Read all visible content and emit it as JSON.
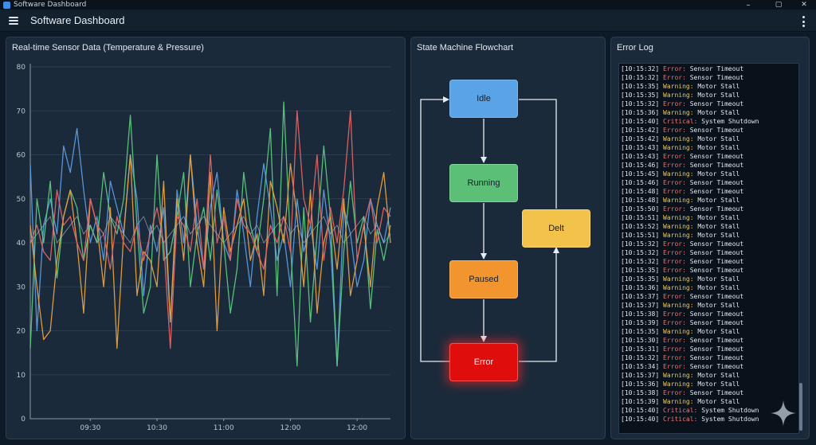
{
  "window": {
    "title": "Software Dashboard",
    "minimize": "–",
    "maximize": "▢",
    "close": "✕"
  },
  "appbar": {
    "title": "Software Dashboard"
  },
  "chart_panel": {
    "title": "Real-time Sensor Data (Temperature & Pressure)"
  },
  "chart_data": {
    "type": "line",
    "title": "Real-time Sensor Data (Temperature & Pressure)",
    "xlabel": "",
    "ylabel": "",
    "ylim": [
      0,
      80
    ],
    "yticks": [
      0,
      10,
      20,
      30,
      40,
      50,
      60,
      70,
      80
    ],
    "xlim": [
      0,
      54
    ],
    "xticks": [
      {
        "x": 9,
        "label": "09:30"
      },
      {
        "x": 19,
        "label": "10:30"
      },
      {
        "x": 29,
        "label": "11:00"
      },
      {
        "x": 39,
        "label": "12:00"
      },
      {
        "x": 49,
        "label": "12:00"
      }
    ],
    "grid": true,
    "series": [
      {
        "color": "#5b9be0",
        "values": [
          58,
          20,
          44,
          50,
          42,
          62,
          56,
          66,
          52,
          40,
          46,
          36,
          54,
          48,
          42,
          60,
          50,
          28,
          44,
          38,
          48,
          22,
          52,
          40,
          60,
          44,
          34,
          48,
          56,
          40,
          36,
          52,
          42,
          30,
          46,
          58,
          48,
          36,
          42,
          30,
          50,
          38,
          44,
          34,
          52,
          40,
          12,
          48,
          42,
          30,
          36,
          50,
          44,
          40,
          48
        ]
      },
      {
        "color": "#5cc77e",
        "values": [
          16,
          50,
          40,
          54,
          32,
          46,
          52,
          48,
          36,
          44,
          40,
          56,
          46,
          42,
          50,
          69,
          44,
          24,
          30,
          60,
          36,
          38,
          46,
          56,
          30,
          42,
          48,
          36,
          52,
          40,
          24,
          34,
          56,
          44,
          38,
          50,
          66,
          28,
          72,
          40,
          12,
          48,
          22,
          42,
          62,
          46,
          12,
          38,
          54,
          40,
          46,
          25,
          43,
          36,
          44
        ]
      },
      {
        "color": "#e8a040",
        "values": [
          44,
          30,
          18,
          20,
          36,
          46,
          52,
          40,
          24,
          50,
          44,
          30,
          48,
          16,
          42,
          60,
          28,
          38,
          36,
          30,
          54,
          22,
          50,
          36,
          60,
          40,
          30,
          56,
          20,
          48,
          38,
          44,
          50,
          36,
          42,
          28,
          54,
          48,
          40,
          58,
          46,
          30,
          52,
          24,
          40,
          46,
          34,
          50,
          28,
          36,
          44,
          30,
          48,
          56,
          40
        ]
      },
      {
        "color": "#e26464",
        "values": [
          40,
          44,
          38,
          36,
          52,
          44,
          46,
          40,
          36,
          50,
          44,
          42,
          34,
          46,
          40,
          38,
          44,
          36,
          42,
          48,
          40,
          16,
          46,
          44,
          38,
          50,
          34,
          60,
          40,
          46,
          36,
          50,
          44,
          42,
          38,
          34,
          44,
          40,
          46,
          38,
          70,
          50,
          44,
          60,
          36,
          48,
          40,
          52,
          70,
          36,
          44,
          50,
          40,
          48,
          46
        ]
      },
      {
        "color": "#aab3bd",
        "values": [
          40,
          42,
          44,
          46,
          40,
          42,
          44,
          46,
          42,
          44,
          40,
          42,
          46,
          44,
          42,
          40,
          44,
          46,
          42,
          44,
          40,
          42,
          44,
          46,
          42,
          44,
          46,
          44,
          42,
          40,
          42,
          44,
          46,
          42,
          44,
          40,
          42,
          44,
          46,
          42,
          44,
          40,
          42,
          44,
          46,
          42,
          44,
          40,
          42,
          44,
          46,
          42,
          44,
          40,
          42
        ]
      }
    ]
  },
  "flow_panel": {
    "title": "State Machine Flowchart",
    "nodes": {
      "idle": "Idle",
      "running": "Running",
      "paused": "Paused",
      "error": "Error",
      "delt": "Delt"
    }
  },
  "log_panel": {
    "title": "Error Log",
    "entries": [
      {
        "ts": "[10:15:32]",
        "level": "Error:",
        "kind": "error",
        "msg": "Sensor Timeout"
      },
      {
        "ts": "[10:15:32]",
        "level": "Error:",
        "kind": "error",
        "msg": "Sensor Timeout"
      },
      {
        "ts": "[10:15:35]",
        "level": "Warning:",
        "kind": "warning",
        "msg": "Motor Stall"
      },
      {
        "ts": "[10:15:35]",
        "level": "Warning:",
        "kind": "warning",
        "msg": "Motor Stall"
      },
      {
        "ts": "[10:15:32]",
        "level": "Error:",
        "kind": "error",
        "msg": "Sensor Timeout"
      },
      {
        "ts": "[10:15:36]",
        "level": "Warning:",
        "kind": "warning",
        "msg": "Motor Stall"
      },
      {
        "ts": "[10:15:40]",
        "level": "Critical:",
        "kind": "critical",
        "msg": "System Shutdown"
      },
      {
        "ts": "[10:15:42]",
        "level": "Error:",
        "kind": "error",
        "msg": "Sensor Timeout"
      },
      {
        "ts": "[10:15:42]",
        "level": "Warning:",
        "kind": "warning",
        "msg": "Motor Stall"
      },
      {
        "ts": "[10:15:43]",
        "level": "Warning:",
        "kind": "warning",
        "msg": "Motor Stall"
      },
      {
        "ts": "[10:15:43]",
        "level": "Error:",
        "kind": "error",
        "msg": "Sensor Timeout"
      },
      {
        "ts": "[10:15:46]",
        "level": "Error:",
        "kind": "error",
        "msg": "Sensor Timeout"
      },
      {
        "ts": "[10:15:45]",
        "level": "Warning:",
        "kind": "warning",
        "msg": "Motor Stall"
      },
      {
        "ts": "[10:15:46]",
        "level": "Error:",
        "kind": "error",
        "msg": "Sensor Timeout"
      },
      {
        "ts": "[10:15:48]",
        "level": "Error:",
        "kind": "error",
        "msg": "Sensor Timeout"
      },
      {
        "ts": "[10:15:48]",
        "level": "Warning:",
        "kind": "warning",
        "msg": "Motor Stall"
      },
      {
        "ts": "[10:15:50]",
        "level": "Error:",
        "kind": "error",
        "msg": "Sensor Timeout"
      },
      {
        "ts": "[10:15:51]",
        "level": "Warning:",
        "kind": "warning",
        "msg": "Motor Stall"
      },
      {
        "ts": "[10:15:52]",
        "level": "Warning:",
        "kind": "warning",
        "msg": "Motor Stall"
      },
      {
        "ts": "[10:15:51]",
        "level": "Warning:",
        "kind": "warning",
        "msg": "Motor Stall"
      },
      {
        "ts": "[10:15:32]",
        "level": "Error:",
        "kind": "error",
        "msg": "Sensor Timeout"
      },
      {
        "ts": "[10:15:32]",
        "level": "Error:",
        "kind": "error",
        "msg": "Sensor Timeout"
      },
      {
        "ts": "[10:15:32]",
        "level": "Error:",
        "kind": "error",
        "msg": "Sensor Timeout"
      },
      {
        "ts": "[10:15:35]",
        "level": "Error:",
        "kind": "error",
        "msg": "Sensor Timeout"
      },
      {
        "ts": "[10:15:35]",
        "level": "Warning:",
        "kind": "warning",
        "msg": "Motor Stall"
      },
      {
        "ts": "[10:15:36]",
        "level": "Warning:",
        "kind": "warning",
        "msg": "Motor Stall"
      },
      {
        "ts": "[10:15:37]",
        "level": "Error:",
        "kind": "error",
        "msg": "Sensor Timeout"
      },
      {
        "ts": "[10:15:37]",
        "level": "Warning:",
        "kind": "warning",
        "msg": "Motor Stall"
      },
      {
        "ts": "[10:15:38]",
        "level": "Error:",
        "kind": "error",
        "msg": "Sensor Timeout"
      },
      {
        "ts": "[10:15:39]",
        "level": "Error:",
        "kind": "error",
        "msg": "Sensor Timeout"
      },
      {
        "ts": "[10:15:35]",
        "level": "Warning:",
        "kind": "warning",
        "msg": "Motor Stall"
      },
      {
        "ts": "[10:15:30]",
        "level": "Error:",
        "kind": "error",
        "msg": "Sensor Timeout"
      },
      {
        "ts": "[10:15:31]",
        "level": "Error:",
        "kind": "error",
        "msg": "Sensor Timeout"
      },
      {
        "ts": "[10:15:32]",
        "level": "Error:",
        "kind": "error",
        "msg": "Sensor Timeout"
      },
      {
        "ts": "[10:15:34]",
        "level": "Error:",
        "kind": "error",
        "msg": "Sensor Timeout"
      },
      {
        "ts": "[10:15:37]",
        "level": "Warning:",
        "kind": "warning",
        "msg": "Motor Stall"
      },
      {
        "ts": "[10:15:36]",
        "level": "Warning:",
        "kind": "warning",
        "msg": "Motor Stall"
      },
      {
        "ts": "[10:15:38]",
        "level": "Error:",
        "kind": "error",
        "msg": "Sensor Timeout"
      },
      {
        "ts": "[10:15:39]",
        "level": "Warning:",
        "kind": "warning",
        "msg": "Motor Stall"
      },
      {
        "ts": "[10:15:40]",
        "level": "Critical:",
        "kind": "critical",
        "msg": "System Shutdown"
      },
      {
        "ts": "[10:15:40]",
        "level": "Critical:",
        "kind": "critical",
        "msg": "System Shutdown"
      }
    ]
  }
}
